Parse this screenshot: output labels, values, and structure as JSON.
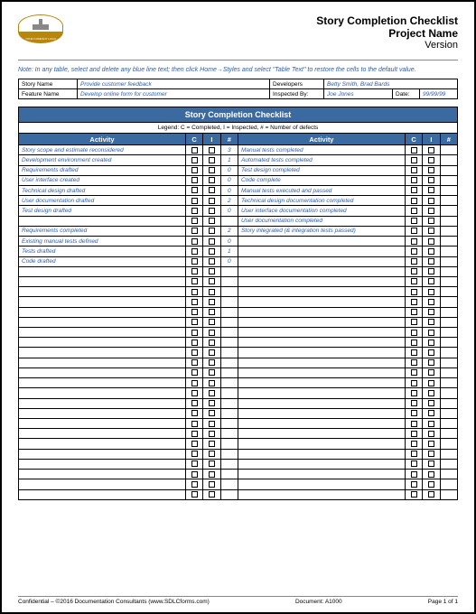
{
  "header": {
    "logo_text": "YOUR COMPANY LOGO",
    "title": "Story Completion Checklist",
    "subtitle": "Project Name",
    "version": "Version"
  },
  "note": "Note: In any table, select and delete any blue line text; then click Home→Styles and select \"Table Text\" to restore the cells to the default value.",
  "meta": {
    "story_name_label": "Story Name",
    "story_name": "Provide customer feedback",
    "developers_label": "Developers",
    "developers": "Betty Smith, Brad Bards",
    "feature_name_label": "Feature Name",
    "feature_name": "Develop online form for customer",
    "inspected_by_label": "Inspected By:",
    "inspected_by": "Joe Jones",
    "date_label": "Date:",
    "date": "99/99/99"
  },
  "checklist": {
    "title": "Story Completion Checklist",
    "legend": "Legend:  C = Completed, I = Inspected, # = Number of defects",
    "heads": {
      "activity": "Activity",
      "c": "C",
      "i": "I",
      "n": "#"
    },
    "rows": [
      {
        "l": "Story scope and estimate reconsidered",
        "ln": "3",
        "r": "Manual tests completed",
        "rn": ""
      },
      {
        "l": "Development environment created",
        "ln": "1",
        "r": "Automated tests completed",
        "rn": ""
      },
      {
        "l": "Requirements drafted",
        "ln": "0",
        "r": "Test design completed",
        "rn": ""
      },
      {
        "l": "User interface created",
        "ln": "0",
        "r": "Code complete",
        "rn": ""
      },
      {
        "l": "Technical design drafted",
        "ln": "0",
        "r": "Manual tests executed and passed",
        "rn": ""
      },
      {
        "l": "User documentation drafted",
        "ln": "2",
        "r": "Technical design documentation completed",
        "rn": ""
      },
      {
        "l": "Test design drafted",
        "ln": "0",
        "r": "User interface documentation completed",
        "rn": ""
      },
      {
        "l": "",
        "ln": "",
        "r": "User documentation completed",
        "rn": ""
      },
      {
        "l": "Requirements completed",
        "ln": "2",
        "r": "Story integrated (& integration tests passed)",
        "rn": ""
      },
      {
        "l": "Existing manual tests defined",
        "ln": "0",
        "r": "",
        "rn": ""
      },
      {
        "l": "Tests drafted",
        "ln": "1",
        "r": "",
        "rn": ""
      },
      {
        "l": "Code drafted",
        "ln": "0",
        "r": "",
        "rn": ""
      },
      {
        "l": "",
        "ln": "",
        "r": "",
        "rn": ""
      },
      {
        "l": "",
        "ln": "",
        "r": "",
        "rn": ""
      },
      {
        "l": "",
        "ln": "",
        "r": "",
        "rn": ""
      },
      {
        "l": "",
        "ln": "",
        "r": "",
        "rn": ""
      },
      {
        "l": "",
        "ln": "",
        "r": "",
        "rn": ""
      },
      {
        "l": "",
        "ln": "",
        "r": "",
        "rn": ""
      },
      {
        "l": "",
        "ln": "",
        "r": "",
        "rn": ""
      },
      {
        "l": "",
        "ln": "",
        "r": "",
        "rn": ""
      },
      {
        "l": "",
        "ln": "",
        "r": "",
        "rn": ""
      },
      {
        "l": "",
        "ln": "",
        "r": "",
        "rn": ""
      },
      {
        "l": "",
        "ln": "",
        "r": "",
        "rn": ""
      },
      {
        "l": "",
        "ln": "",
        "r": "",
        "rn": ""
      },
      {
        "l": "",
        "ln": "",
        "r": "",
        "rn": ""
      },
      {
        "l": "",
        "ln": "",
        "r": "",
        "rn": ""
      },
      {
        "l": "",
        "ln": "",
        "r": "",
        "rn": ""
      },
      {
        "l": "",
        "ln": "",
        "r": "",
        "rn": ""
      },
      {
        "l": "",
        "ln": "",
        "r": "",
        "rn": ""
      },
      {
        "l": "",
        "ln": "",
        "r": "",
        "rn": ""
      },
      {
        "l": "",
        "ln": "",
        "r": "",
        "rn": ""
      },
      {
        "l": "",
        "ln": "",
        "r": "",
        "rn": ""
      },
      {
        "l": "",
        "ln": "",
        "r": "",
        "rn": ""
      },
      {
        "l": "",
        "ln": "",
        "r": "",
        "rn": ""
      },
      {
        "l": "",
        "ln": "",
        "r": "",
        "rn": ""
      }
    ]
  },
  "footer": {
    "left": "Confidential – ©2016 Documentation Consultants (www.SDLCforms.com)",
    "mid": "Document: A1000",
    "right": "Page 1 of 1"
  }
}
